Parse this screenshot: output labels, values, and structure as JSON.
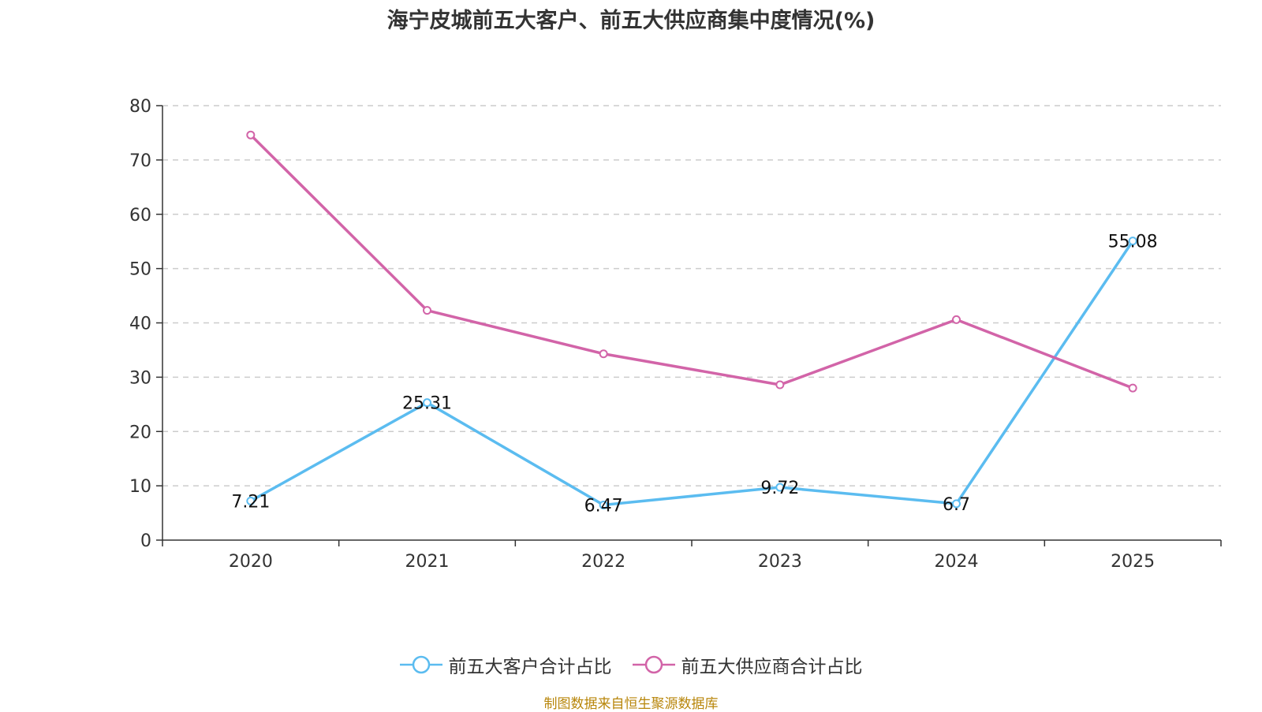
{
  "chart_data": {
    "type": "line",
    "title": "海宁皮城前五大客户、前五大供应商集中度情况(%)",
    "categories": [
      "2020",
      "2021",
      "2022",
      "2023",
      "2024",
      "2025"
    ],
    "series": [
      {
        "name": "前五大客户合计占比",
        "color": "#5bbcf0",
        "values": [
          7.21,
          25.31,
          6.47,
          9.72,
          6.7,
          55.08
        ],
        "labels": [
          "7.21",
          "25.31",
          "6.47",
          "9.72",
          "6.7",
          "55.08"
        ]
      },
      {
        "name": "前五大供应商合计占比",
        "color": "#d264a8",
        "values": [
          74.6,
          42.3,
          34.3,
          28.6,
          40.6,
          28.0
        ]
      }
    ],
    "ylim": [
      0,
      80
    ],
    "yticks": [
      "0",
      "10",
      "20",
      "30",
      "40",
      "50",
      "60",
      "70",
      "80"
    ],
    "xlabel": "",
    "ylabel": "",
    "grid": true,
    "legend_position": "bottom-center"
  },
  "source_note": "制图数据来自恒生聚源数据库"
}
